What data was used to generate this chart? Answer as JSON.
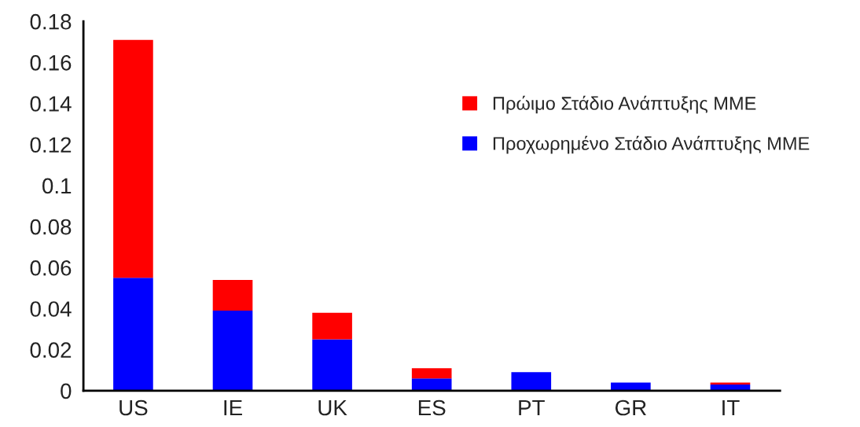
{
  "chart_data": {
    "type": "bar",
    "stacked": true,
    "categories": [
      "US",
      "IE",
      "UK",
      "ES",
      "PT",
      "GR",
      "IT"
    ],
    "series": [
      {
        "name": "Προχωρημένο Στάδιο Ανάπτυξης ΜΜΕ",
        "color": "#0000ff",
        "values": [
          0.055,
          0.039,
          0.025,
          0.006,
          0.009,
          0.004,
          0.003
        ]
      },
      {
        "name": "Πρώιμο Στάδιο Ανάπτυξης ΜΜΕ",
        "color": "#ff0000",
        "values": [
          0.116,
          0.015,
          0.013,
          0.005,
          null,
          null,
          0.001
        ]
      }
    ],
    "ylim": [
      0,
      0.18
    ],
    "yticks": [
      0,
      0.02,
      0.04,
      0.06,
      0.08,
      {
        "value": 0.1,
        "label": "0.1"
      },
      0.12,
      0.14,
      0.16,
      0.18
    ],
    "grid": false,
    "legend": "right"
  }
}
